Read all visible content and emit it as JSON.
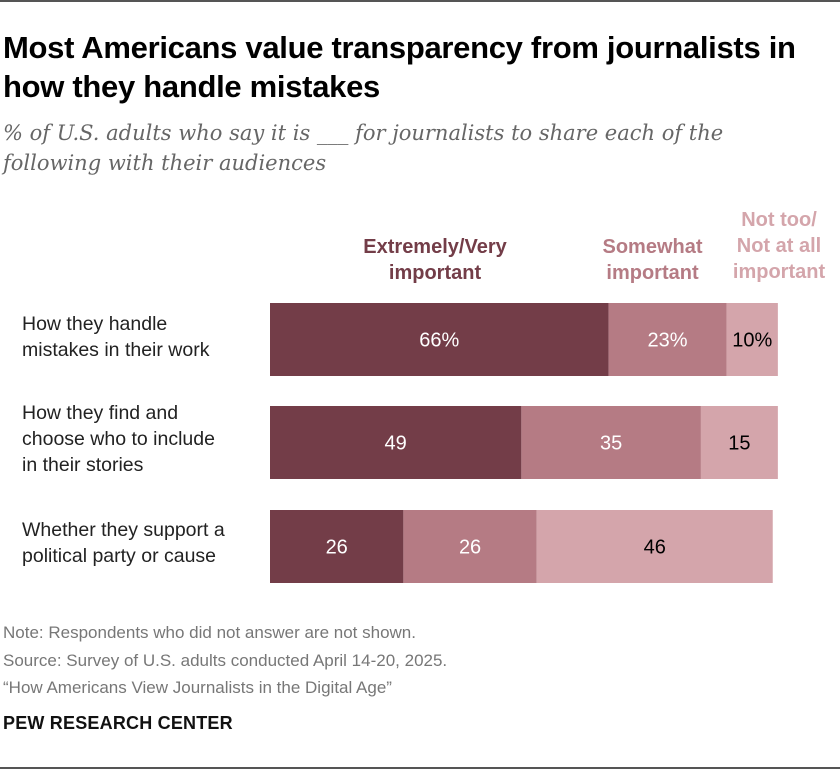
{
  "title": "Most Americans value transparency from journalists in how they handle mistakes",
  "subtitle": "% of U.S. adults who say it is ___ for journalists to share each of the following with their audiences",
  "colors": {
    "series1": "#733d48",
    "series2": "#b57b84",
    "series3": "#d4a5ab",
    "label_dark": "#ffffff",
    "label_light": "#000000"
  },
  "chart_data": {
    "type": "bar",
    "orientation": "horizontal",
    "stacked": true,
    "categories": [
      "How they handle mistakes in their work",
      "How they find and choose who to include in their stories",
      "Whether they support a political party or cause"
    ],
    "series": [
      {
        "name": "Extremely/Very important",
        "values": [
          66,
          49,
          26
        ],
        "labels": [
          "66%",
          "49",
          "26"
        ]
      },
      {
        "name": "Somewhat important",
        "values": [
          23,
          35,
          26
        ],
        "labels": [
          "23%",
          "35",
          "26"
        ]
      },
      {
        "name": "Not too/ Not at all important",
        "values": [
          10,
          15,
          46
        ],
        "labels": [
          "10%",
          "15",
          "46"
        ]
      }
    ],
    "xlim": [
      0,
      100
    ]
  },
  "legend": {
    "s1": [
      "Extremely/Very",
      "important"
    ],
    "s2": [
      "Somewhat",
      "important"
    ],
    "s3": [
      "Not too/",
      "Not at all",
      "important"
    ]
  },
  "row_labels": [
    [
      "How they handle",
      "mistakes in their work"
    ],
    [
      "How they find and",
      "choose who to include",
      "in their stories"
    ],
    [
      "Whether they support a",
      "political party or cause"
    ]
  ],
  "notes": {
    "note": "Note: Respondents who did not answer are not shown.",
    "source": "Source: Survey of U.S. adults conducted April 14-20, 2025.",
    "report": "“How Americans View Journalists in the Digital Age”"
  },
  "brand": "PEW RESEARCH CENTER"
}
